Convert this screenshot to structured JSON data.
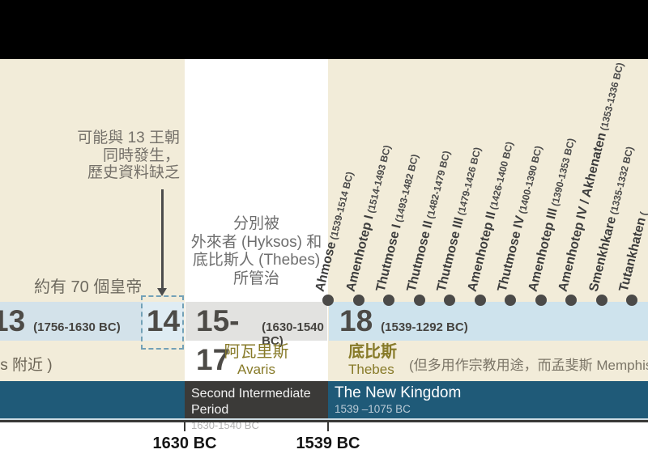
{
  "colors": {
    "background_beige": "#f2ecd9",
    "band_blue": "#d3e2ea",
    "band_blue_light": "#dfecf3",
    "band_gray": "#e2e2e0",
    "band_blue_18": "#cee3ed",
    "teal_period_band": "#1f5a78",
    "dark_period_box": "#3b3a38",
    "olive_site_text": "#877a28",
    "dashed_border": "#73a1b7",
    "dot": "#4b4a48"
  },
  "notes": {
    "dynasty14_note": {
      "lines": [
        "可能與 13 王朝",
        "同時發生，",
        "歷史資料缺乏"
      ]
    },
    "hyksos_note": {
      "lines": [
        "分別被",
        "外來者 (Hyksos) 和",
        "底比斯人 (Thebes)",
        "所管治"
      ]
    },
    "seventy_kings_note": "約有 70 個皇帝"
  },
  "bands": {
    "d13": {
      "label": "13",
      "dates": "(1756-1630 BC)"
    },
    "d14": {
      "label": "14"
    },
    "d15_17": {
      "label": "15-17",
      "dates": "(1630-1540 BC)"
    },
    "d18": {
      "label": "18",
      "dates": "(1539-1292 BC)"
    }
  },
  "sites": {
    "left_partial": "is 附近 )",
    "avaris_zh": "阿瓦里斯",
    "avaris_en": "Avaris",
    "thebes_zh": "底比斯",
    "thebes_en": "Thebes",
    "thebes_note": "(但多用作宗教用途，而孟斐斯 Memphis 為政治首都"
  },
  "pharaohs": [
    {
      "name": "Ahmose",
      "dates": "(1539-1514 BC)"
    },
    {
      "name": "Amenhotep I",
      "dates": "(1514-1493 BC)"
    },
    {
      "name": "Thutmose I",
      "dates": "(1493-1482 BC)"
    },
    {
      "name": "Thutmose II",
      "dates": "(1482-1479 BC)"
    },
    {
      "name": "Thutmose III",
      "dates": "(1479-1426 BC)"
    },
    {
      "name": "Amenhotep II",
      "dates": "(1426-1400 BC)"
    },
    {
      "name": "Thutmose IV",
      "dates": "(1400-1390 BC)"
    },
    {
      "name": "Amenhotep III",
      "dates": "(1390-1353 BC)"
    },
    {
      "name": "Amenhotep IV / Akhenaten",
      "dates": "(1353-1336 BC)"
    },
    {
      "name": "Smenkhkare",
      "dates": "(1335-1332 BC)"
    },
    {
      "name": "Tutankhaten",
      "dates": "("
    }
  ],
  "periods": {
    "second_intermediate": {
      "name": "Second Intermediate Period",
      "dates": "1630-1540 BC"
    },
    "new_kingdom": {
      "name": "The New Kingdom",
      "dates": "1539 –1075 BC"
    }
  },
  "axis": {
    "tick_1630": "1630 BC",
    "tick_1539": "1539 BC"
  }
}
